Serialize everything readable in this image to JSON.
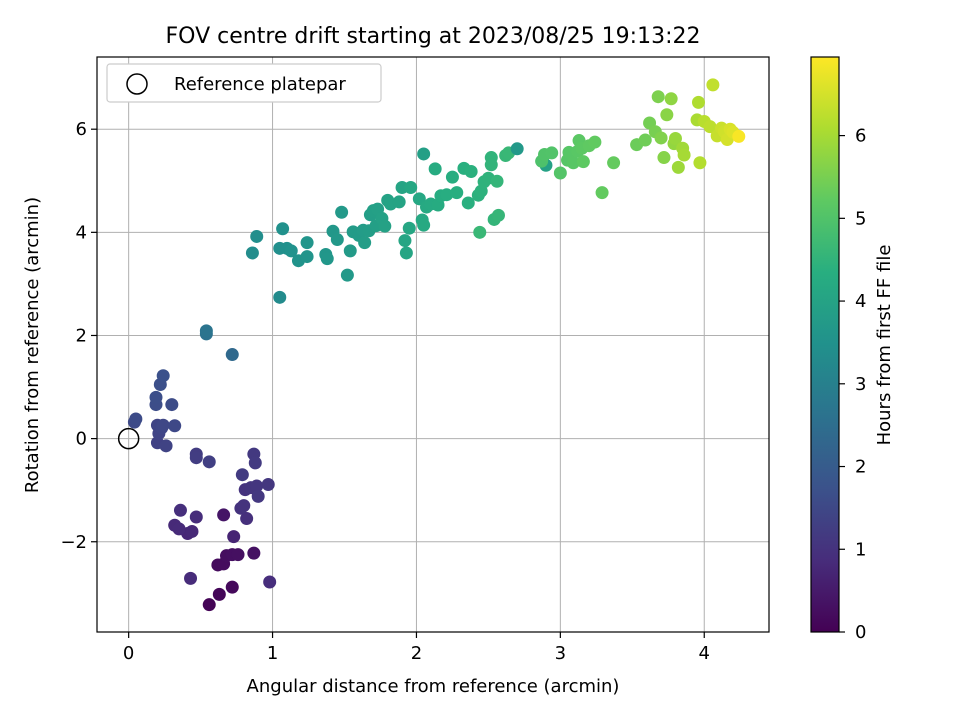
{
  "chart_data": {
    "type": "scatter",
    "title": "FOV centre drift starting at 2023/08/25 19:13:22",
    "xlabel": "Angular distance from reference (arcmin)",
    "ylabel": "Rotation from reference (arcmin)",
    "xlim": [
      -0.22,
      4.45
    ],
    "ylim": [
      -3.75,
      7.4
    ],
    "xticks": [
      0,
      1,
      2,
      3,
      4
    ],
    "yticks": [
      -2,
      0,
      2,
      4,
      6
    ],
    "xtick_labels": [
      "0",
      "1",
      "2",
      "3",
      "4"
    ],
    "ytick_labels": [
      "−2",
      "0",
      "2",
      "4",
      "6"
    ],
    "grid": true,
    "colormap": "viridis",
    "colorbar": {
      "label": "Hours from first FF file",
      "range": [
        0,
        6.95
      ],
      "ticks": [
        0,
        1,
        2,
        3,
        4,
        5,
        6
      ],
      "tick_labels": [
        "0",
        "1",
        "2",
        "3",
        "4",
        "5",
        "6"
      ]
    },
    "legend": {
      "location": "upper-left",
      "entries": [
        {
          "label": "Reference platepar",
          "marker": "open-circle",
          "x": 0,
          "y": 0
        }
      ]
    },
    "points": [
      [
        0.56,
        -3.22,
        0.05
      ],
      [
        0.63,
        -3.02,
        0.1
      ],
      [
        0.72,
        -2.88,
        0.15
      ],
      [
        0.62,
        -2.45,
        0.2
      ],
      [
        0.66,
        -2.43,
        0.22
      ],
      [
        0.68,
        -2.27,
        0.25
      ],
      [
        0.72,
        -2.25,
        0.28
      ],
      [
        0.76,
        -2.25,
        0.3
      ],
      [
        0.87,
        -2.22,
        0.32
      ],
      [
        0.66,
        -1.48,
        0.4
      ],
      [
        0.98,
        -2.78,
        0.9
      ],
      [
        0.43,
        -2.71,
        0.85
      ],
      [
        0.73,
        -1.9,
        0.7
      ],
      [
        0.41,
        -1.84,
        0.75
      ],
      [
        0.44,
        -1.8,
        0.78
      ],
      [
        0.32,
        -1.68,
        0.8
      ],
      [
        0.35,
        -1.75,
        0.82
      ],
      [
        0.47,
        -1.52,
        0.88
      ],
      [
        0.36,
        -1.39,
        0.92
      ],
      [
        0.82,
        -1.55,
        0.95
      ],
      [
        0.78,
        -1.35,
        0.98
      ],
      [
        0.8,
        -1.3,
        1.0
      ],
      [
        0.81,
        -0.99,
        1.02
      ],
      [
        0.85,
        -0.95,
        1.05
      ],
      [
        0.89,
        -0.92,
        1.08
      ],
      [
        0.97,
        -0.89,
        1.1
      ],
      [
        0.9,
        -1.12,
        1.12
      ],
      [
        0.87,
        -0.3,
        1.15
      ],
      [
        0.88,
        -0.47,
        1.18
      ],
      [
        0.79,
        -0.7,
        1.2
      ],
      [
        0.47,
        -0.3,
        1.22
      ],
      [
        0.47,
        -0.37,
        1.25
      ],
      [
        0.56,
        -0.45,
        1.28
      ],
      [
        0.2,
        -0.08,
        1.35
      ],
      [
        0.26,
        -0.14,
        1.38
      ],
      [
        0.21,
        0.1,
        1.4
      ],
      [
        0.2,
        0.26,
        1.42
      ],
      [
        0.23,
        0.21,
        1.45
      ],
      [
        0.24,
        0.26,
        1.48
      ],
      [
        0.32,
        0.25,
        1.5
      ],
      [
        0.04,
        0.32,
        1.55
      ],
      [
        0.05,
        0.38,
        1.58
      ],
      [
        0.3,
        0.66,
        1.6
      ],
      [
        0.19,
        0.66,
        1.62
      ],
      [
        0.19,
        0.8,
        1.65
      ],
      [
        0.22,
        1.05,
        1.7
      ],
      [
        0.24,
        1.22,
        1.72
      ],
      [
        0.72,
        1.63,
        2.35
      ],
      [
        0.54,
        2.03,
        2.6
      ],
      [
        0.54,
        2.09,
        2.65
      ],
      [
        1.05,
        2.74,
        3.3
      ],
      [
        0.86,
        3.6,
        3.35
      ],
      [
        0.89,
        3.92,
        3.38
      ],
      [
        1.05,
        3.69,
        3.42
      ],
      [
        1.1,
        3.69,
        3.45
      ],
      [
        1.07,
        4.07,
        3.48
      ],
      [
        1.13,
        3.64,
        3.5
      ],
      [
        1.18,
        3.45,
        3.52
      ],
      [
        1.24,
        3.53,
        3.55
      ],
      [
        1.24,
        3.8,
        3.58
      ],
      [
        1.37,
        3.57,
        3.62
      ],
      [
        1.38,
        3.49,
        3.64
      ],
      [
        1.42,
        4.02,
        3.66
      ],
      [
        1.45,
        3.86,
        3.68
      ],
      [
        1.48,
        4.39,
        3.7
      ],
      [
        1.52,
        3.17,
        3.72
      ],
      [
        1.54,
        3.64,
        3.74
      ],
      [
        1.56,
        4.01,
        3.76
      ],
      [
        1.6,
        3.94,
        3.78
      ],
      [
        1.63,
        4.04,
        3.8
      ],
      [
        1.64,
        3.8,
        3.82
      ],
      [
        1.67,
        4.03,
        3.84
      ],
      [
        1.68,
        4.34,
        3.86
      ],
      [
        1.7,
        4.42,
        3.88
      ],
      [
        1.72,
        4.13,
        3.9
      ],
      [
        1.73,
        4.45,
        3.92
      ],
      [
        1.76,
        4.27,
        3.94
      ],
      [
        1.78,
        4.12,
        3.96
      ],
      [
        1.8,
        4.62,
        3.98
      ],
      [
        1.82,
        4.55,
        4.0
      ],
      [
        1.88,
        4.59,
        4.02
      ],
      [
        1.9,
        4.87,
        4.04
      ],
      [
        1.92,
        3.84,
        4.06
      ],
      [
        1.93,
        3.6,
        4.08
      ],
      [
        1.95,
        4.08,
        4.1
      ],
      [
        1.96,
        4.87,
        4.12
      ],
      [
        2.02,
        4.65,
        4.14
      ],
      [
        2.04,
        4.24,
        4.16
      ],
      [
        2.05,
        4.14,
        4.18
      ],
      [
        2.07,
        4.49,
        4.2
      ],
      [
        2.1,
        4.55,
        4.22
      ],
      [
        2.13,
        5.23,
        4.24
      ],
      [
        2.15,
        4.53,
        4.26
      ],
      [
        2.17,
        4.71,
        4.28
      ],
      [
        2.21,
        4.73,
        4.3
      ],
      [
        2.05,
        5.52,
        3.9
      ],
      [
        2.25,
        5.07,
        4.32
      ],
      [
        2.28,
        4.77,
        4.34
      ],
      [
        2.33,
        5.24,
        4.36
      ],
      [
        2.36,
        4.57,
        4.38
      ],
      [
        2.38,
        5.18,
        4.4
      ],
      [
        2.43,
        4.72,
        4.42
      ],
      [
        2.45,
        4.8,
        4.44
      ],
      [
        2.47,
        4.98,
        4.46
      ],
      [
        2.5,
        5.05,
        4.48
      ],
      [
        2.52,
        5.45,
        4.5
      ],
      [
        2.52,
        5.31,
        4.52
      ],
      [
        2.54,
        4.25,
        4.54
      ],
      [
        2.56,
        4.99,
        4.56
      ],
      [
        2.57,
        4.33,
        4.58
      ],
      [
        2.62,
        5.49,
        4.6
      ],
      [
        2.64,
        5.54,
        4.62
      ],
      [
        2.44,
        4.0,
        4.64
      ],
      [
        2.7,
        5.62,
        3.7
      ],
      [
        2.9,
        5.3,
        3.95
      ],
      [
        2.87,
        5.38,
        4.95
      ],
      [
        2.89,
        5.51,
        5.0
      ],
      [
        2.94,
        5.54,
        5.02
      ],
      [
        3.0,
        5.15,
        5.05
      ],
      [
        3.05,
        5.4,
        5.08
      ],
      [
        3.06,
        5.55,
        5.1
      ],
      [
        3.09,
        5.35,
        5.12
      ],
      [
        3.12,
        5.57,
        5.14
      ],
      [
        3.13,
        5.78,
        5.16
      ],
      [
        3.15,
        5.63,
        5.18
      ],
      [
        3.16,
        5.37,
        5.2
      ],
      [
        3.2,
        5.68,
        5.22
      ],
      [
        3.24,
        5.75,
        5.24
      ],
      [
        3.29,
        4.77,
        5.26
      ],
      [
        3.37,
        5.35,
        5.28
      ],
      [
        3.53,
        5.7,
        5.35
      ],
      [
        3.59,
        5.79,
        5.4
      ],
      [
        3.62,
        6.12,
        5.45
      ],
      [
        3.66,
        5.95,
        5.5
      ],
      [
        3.68,
        6.63,
        5.55
      ],
      [
        3.7,
        5.83,
        5.6
      ],
      [
        3.72,
        5.45,
        5.65
      ],
      [
        3.74,
        6.28,
        5.7
      ],
      [
        3.77,
        6.59,
        5.75
      ],
      [
        3.79,
        5.72,
        5.8
      ],
      [
        3.8,
        5.82,
        5.85
      ],
      [
        3.82,
        5.26,
        5.9
      ],
      [
        3.85,
        5.63,
        5.95
      ],
      [
        3.86,
        5.5,
        6.0
      ],
      [
        3.95,
        6.18,
        6.05
      ],
      [
        3.96,
        6.52,
        6.1
      ],
      [
        3.97,
        5.35,
        6.15
      ],
      [
        4.0,
        6.15,
        6.2
      ],
      [
        4.04,
        6.05,
        6.25
      ],
      [
        4.06,
        6.86,
        6.3
      ],
      [
        4.09,
        5.87,
        6.35
      ],
      [
        4.12,
        6.02,
        6.4
      ],
      [
        4.14,
        5.95,
        6.45
      ],
      [
        4.16,
        5.8,
        6.5
      ],
      [
        4.18,
        6.0,
        6.55
      ],
      [
        4.2,
        5.94,
        6.6
      ],
      [
        4.24,
        5.86,
        6.9
      ]
    ]
  }
}
